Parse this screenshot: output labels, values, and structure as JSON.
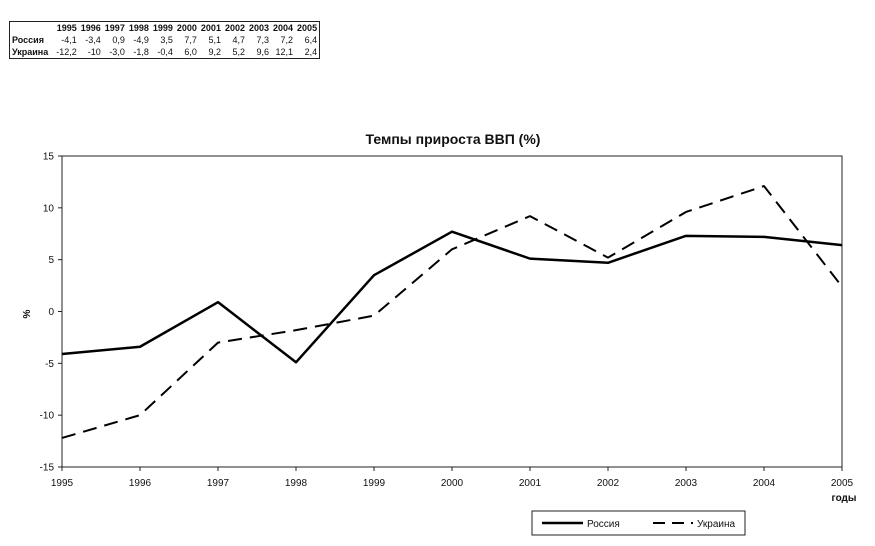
{
  "table": {
    "years": [
      "1995",
      "1996",
      "1997",
      "1998",
      "1999",
      "2000",
      "2001",
      "2002",
      "2003",
      "2004",
      "2005"
    ],
    "rows": [
      {
        "name": "Россия",
        "values": [
          "-4,1",
          "-3,4",
          "0,9",
          "-4,9",
          "3,5",
          "7,7",
          "5,1",
          "4,7",
          "7,3",
          "7,2",
          "6,4"
        ]
      },
      {
        "name": "Украина",
        "values": [
          "-12,2",
          "-10",
          "-3,0",
          "-1,8",
          "-0,4",
          "6,0",
          "9,2",
          "5,2",
          "9,6",
          "12,1",
          "2,4"
        ]
      }
    ]
  },
  "chart_data": {
    "type": "line",
    "title": "Темпы прироста ВВП (%)",
    "xlabel": "годы",
    "ylabel": "%",
    "x": [
      1995,
      1996,
      1997,
      1998,
      1999,
      2000,
      2001,
      2002,
      2003,
      2004,
      2005
    ],
    "x_tick_labels": [
      "1995",
      "1996",
      "1997",
      "1998",
      "1999",
      "2000",
      "2001",
      "2002",
      "2003",
      "2004",
      "2005"
    ],
    "y_tick_labels": [
      "15",
      "10",
      "5",
      "0",
      "-5",
      "-10",
      "-15"
    ],
    "ylim": [
      -15,
      15
    ],
    "yticks": [
      15,
      10,
      5,
      0,
      -5,
      -10,
      -15
    ],
    "grid": false,
    "legend_position": "bottom-right",
    "series": [
      {
        "name": "Россия",
        "style": "solid",
        "color": "#000000",
        "values": [
          -4.1,
          -3.4,
          0.9,
          -4.9,
          3.5,
          7.7,
          5.1,
          4.7,
          7.3,
          7.2,
          6.4
        ]
      },
      {
        "name": "Украина",
        "style": "dashed",
        "color": "#000000",
        "values": [
          -12.2,
          -10,
          -3.0,
          -1.8,
          -0.4,
          6.0,
          9.2,
          5.2,
          9.6,
          12.1,
          2.4
        ]
      }
    ]
  }
}
